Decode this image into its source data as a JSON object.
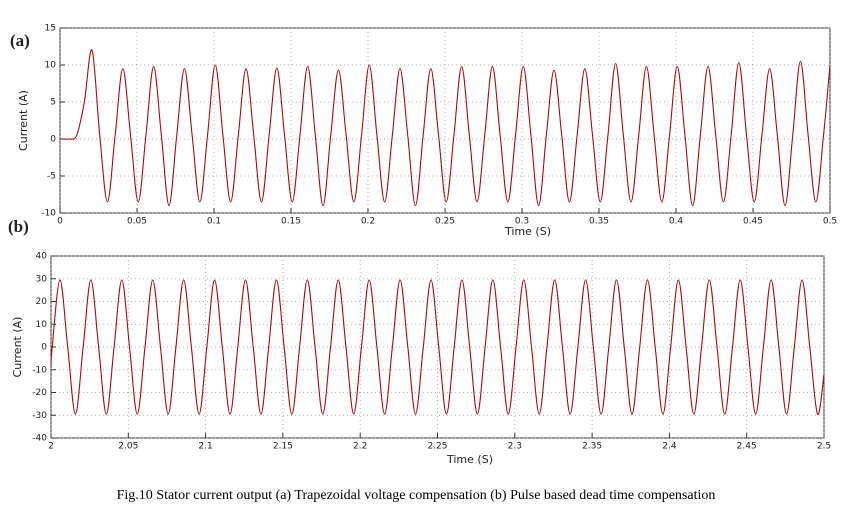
{
  "caption": "Fig.10 Stator current output (a) Trapezoidal voltage compensation (b) Pulse based dead time compensation",
  "chart_data": [
    {
      "type": "line",
      "label": "(a)",
      "x_label": "Time (S)",
      "y_label": "Current (A)",
      "xlim": [
        0,
        0.5
      ],
      "ylim": [
        -10,
        15
      ],
      "xticks": [
        0,
        0.05,
        0.1,
        0.15,
        0.2,
        0.25,
        0.3,
        0.35,
        0.4,
        0.45,
        0.5
      ],
      "yticks": [
        -10,
        -5,
        0,
        5,
        10,
        15
      ],
      "grid": true,
      "series": [
        {
          "name": "Current",
          "color": "#a01010",
          "x": [
            0,
            0.0008,
            0.0058,
            0.0108,
            0.0158,
            0.0208,
            0.0258,
            0.0308,
            0.0358,
            0.0408,
            0.0458,
            0.0508,
            0.0558,
            0.0608,
            0.0658,
            0.0708,
            0.0758,
            0.0808,
            0.0858,
            0.0908,
            0.0958,
            0.1008,
            0.1058,
            0.1108,
            0.1158,
            0.1208,
            0.1258,
            0.1308,
            0.1358,
            0.1408,
            0.1458,
            0.1508,
            0.1558,
            0.1608,
            0.1658,
            0.1708,
            0.1758,
            0.1808,
            0.1858,
            0.1908,
            0.1958,
            0.2008,
            0.2058,
            0.2108,
            0.2158,
            0.2208,
            0.2258,
            0.2308,
            0.2358,
            0.2408,
            0.2458,
            0.2508,
            0.2558,
            0.2608,
            0.2658,
            0.2708,
            0.2758,
            0.2808,
            0.2858,
            0.2908,
            0.2958,
            0.3008,
            0.3058,
            0.3108,
            0.3158,
            0.3208,
            0.3258,
            0.3308,
            0.3358,
            0.3408,
            0.3458,
            0.3508,
            0.3558,
            0.3608,
            0.3658,
            0.3708,
            0.3758,
            0.3808,
            0.3858,
            0.3908,
            0.3958,
            0.4008,
            0.4058,
            0.4108,
            0.4158,
            0.4208,
            0.4258,
            0.4308,
            0.4358,
            0.4408,
            0.4458,
            0.4508,
            0.4558,
            0.4608,
            0.4658,
            0.4708,
            0.4758,
            0.4808,
            0.4858,
            0.4908,
            0.4958,
            0.5
          ],
          "values": [
            0,
            0,
            0,
            0.5,
            5,
            12,
            0.5,
            -8.5,
            0.5,
            9.5,
            0.5,
            -8.5,
            0.5,
            9.8,
            0.5,
            -9,
            0.5,
            9.5,
            0.5,
            -8.5,
            0.5,
            10,
            0.5,
            -8.5,
            0.5,
            9.5,
            0.5,
            -8.5,
            0.5,
            9.6,
            0.5,
            -8.5,
            0.5,
            9.8,
            0.5,
            -9,
            0.5,
            9.3,
            0.5,
            -8.5,
            0.5,
            10,
            0.5,
            -8.5,
            0.5,
            9.5,
            0.5,
            -9,
            0.5,
            9.5,
            0.5,
            -8.5,
            0.5,
            9.8,
            0.5,
            -8.5,
            0.5,
            9.8,
            0.5,
            -8.5,
            0.5,
            9.8,
            0.5,
            -9,
            0.5,
            9.3,
            0.5,
            -8.5,
            0.5,
            9.5,
            0.5,
            -8.5,
            0.5,
            10.2,
            0.5,
            -8.5,
            0.5,
            9.8,
            0.5,
            -8.5,
            0.5,
            9.8,
            0.5,
            -9,
            0.5,
            9.8,
            0.5,
            -8.5,
            0.5,
            10.3,
            0.5,
            -8.5,
            0.5,
            9.5,
            0.5,
            -9,
            0.5,
            10.5,
            0.5,
            -8.5,
            0.5,
            10
          ]
        }
      ]
    },
    {
      "type": "line",
      "label": "(b)",
      "x_label": "Time (S)",
      "y_label": "Current (A)",
      "xlim": [
        2,
        2.5
      ],
      "ylim": [
        -40,
        40
      ],
      "xticks": [
        2,
        2.05,
        2.1,
        2.15,
        2.2,
        2.25,
        2.3,
        2.35,
        2.4,
        2.45,
        2.5
      ],
      "yticks": [
        -40,
        -30,
        -20,
        -10,
        0,
        10,
        20,
        30,
        40
      ],
      "grid": true,
      "series": [
        {
          "name": "Current",
          "color": "#a01010",
          "x": [
            2,
            2.0008,
            2.0058,
            2.0108,
            2.0158,
            2.0208,
            2.0258,
            2.0308,
            2.0358,
            2.0408,
            2.0458,
            2.0508,
            2.0558,
            2.0608,
            2.0658,
            2.0708,
            2.0758,
            2.0808,
            2.0858,
            2.0908,
            2.0958,
            2.1008,
            2.1058,
            2.1108,
            2.1158,
            2.1208,
            2.1258,
            2.1308,
            2.1358,
            2.1408,
            2.1458,
            2.1508,
            2.1558,
            2.1608,
            2.1658,
            2.1708,
            2.1758,
            2.1808,
            2.1858,
            2.1908,
            2.1958,
            2.2008,
            2.2058,
            2.2108,
            2.2158,
            2.2208,
            2.2258,
            2.2308,
            2.2358,
            2.2408,
            2.2458,
            2.2508,
            2.2558,
            2.2608,
            2.2658,
            2.2708,
            2.2758,
            2.2808,
            2.2858,
            2.2908,
            2.2958,
            2.3008,
            2.3058,
            2.3108,
            2.3158,
            2.3208,
            2.3258,
            2.3308,
            2.3358,
            2.3408,
            2.3458,
            2.3508,
            2.3558,
            2.3608,
            2.3658,
            2.3708,
            2.3758,
            2.3808,
            2.3858,
            2.3908,
            2.3958,
            2.4008,
            2.4058,
            2.4108,
            2.4158,
            2.4208,
            2.4258,
            2.4308,
            2.4358,
            2.4408,
            2.4458,
            2.4508,
            2.4558,
            2.4608,
            2.4658,
            2.4708,
            2.4758,
            2.4808,
            2.4858,
            2.4908,
            2.4958,
            2.5
          ],
          "values": [
            -8,
            0,
            29.5,
            0,
            -29.5,
            0,
            29.5,
            0,
            -29.5,
            0,
            29.5,
            0,
            -29.5,
            0,
            29.5,
            0,
            -29.5,
            0,
            29.5,
            0,
            -29.5,
            0,
            29.5,
            0,
            -29.5,
            0,
            29.5,
            0,
            -29.5,
            0,
            29.5,
            0,
            -29.5,
            0,
            29.5,
            0,
            -29.5,
            0,
            29.5,
            0,
            -29.5,
            0,
            29.5,
            0,
            -29.5,
            0,
            29.5,
            0,
            -29.5,
            0,
            29.5,
            0,
            -29.5,
            0,
            29.5,
            0,
            -29.5,
            0,
            29.5,
            0,
            -29.5,
            0,
            29.5,
            0,
            -29.5,
            0,
            29.5,
            0,
            -29.5,
            0,
            29.5,
            0,
            -29.5,
            0,
            29.5,
            0,
            -29.5,
            0,
            29.5,
            0,
            -29.5,
            0,
            29.5,
            0,
            -29.5,
            0,
            29.5,
            0,
            -29.5,
            0,
            29.5,
            0,
            -29.5,
            0,
            29.5,
            0,
            -29.5,
            0,
            29.5,
            0,
            -29.5,
            -12
          ]
        }
      ]
    }
  ]
}
